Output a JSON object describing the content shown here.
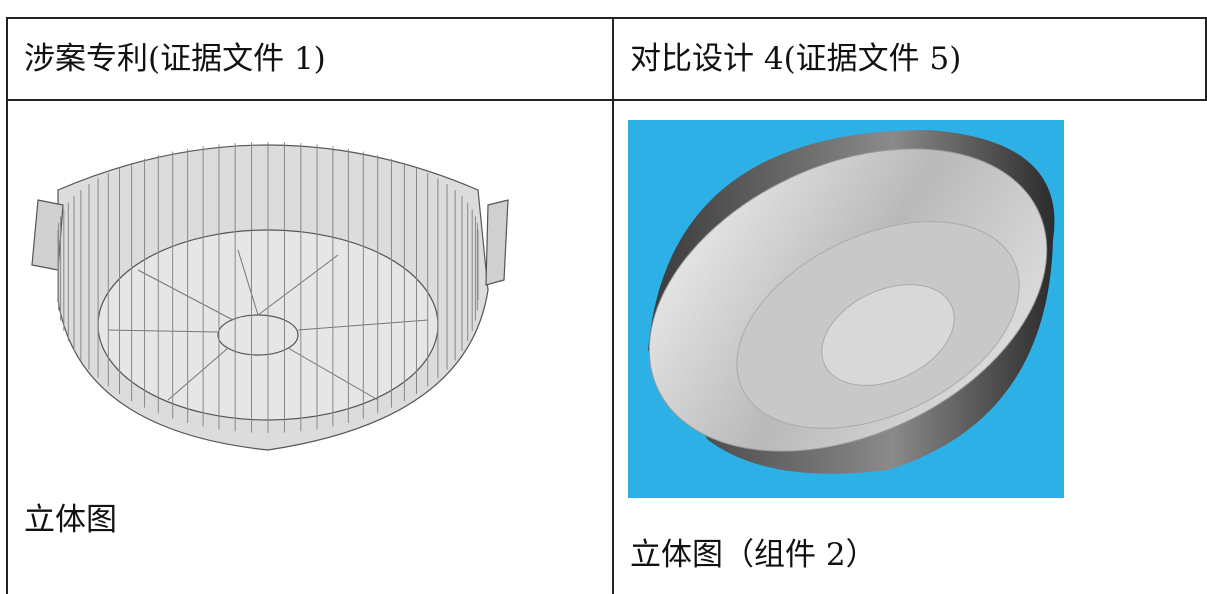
{
  "table": {
    "header": [
      "涉案专利(证据文件 1)",
      "对比设计 4(证据文件 5)"
    ],
    "rows": [
      [
        "立体图",
        "立体图（组件 2）"
      ]
    ]
  }
}
